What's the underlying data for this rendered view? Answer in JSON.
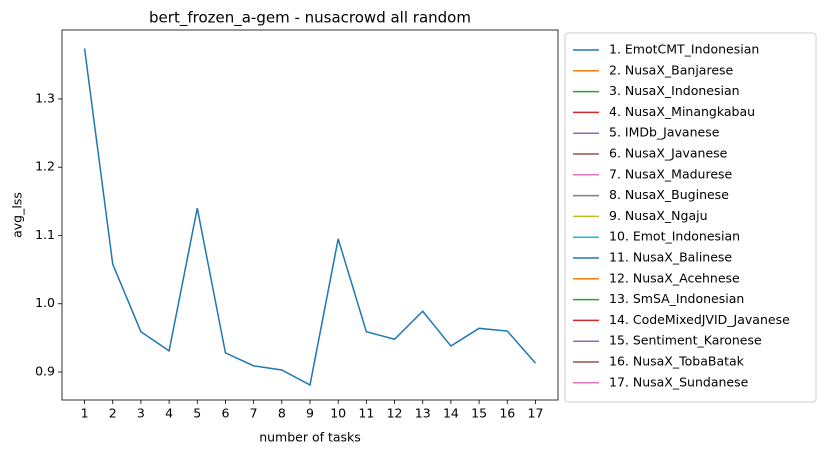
{
  "chart_data": {
    "type": "line",
    "title": "bert_frozen_a-gem - nusacrowd all random",
    "xlabel": "number of tasks",
    "ylabel": "avg_lss",
    "x": [
      1,
      2,
      3,
      4,
      5,
      6,
      7,
      8,
      9,
      10,
      11,
      12,
      13,
      14,
      15,
      16,
      17
    ],
    "xlim": [
      0.2,
      17.8
    ],
    "xticks": [
      1,
      2,
      3,
      4,
      5,
      6,
      7,
      8,
      9,
      10,
      11,
      12,
      13,
      14,
      15,
      16,
      17
    ],
    "ylim": [
      0.859,
      1.401
    ],
    "yticks": [
      {
        "value": 0.9,
        "label": "0.9"
      },
      {
        "value": 1.0,
        "label": "1.0"
      },
      {
        "value": 1.1,
        "label": "1.1"
      },
      {
        "value": 1.2,
        "label": "1.2"
      },
      {
        "value": 1.3,
        "label": "1.3"
      }
    ],
    "grid": false,
    "legend": "outside right",
    "series": [
      {
        "name": "1. EmotCMT_Indonesian",
        "color": "#1f77b4",
        "values": [
          1.374,
          1.058,
          0.959,
          0.931,
          1.14,
          0.928,
          0.909,
          0.903,
          0.881,
          1.095,
          0.959,
          0.948,
          0.989,
          0.938,
          0.964,
          0.96,
          0.913
        ]
      },
      {
        "name": "2. NusaX_Banjarese",
        "color": "#ff7f0e",
        "values": [
          null,
          null,
          null,
          null,
          null,
          null,
          null,
          null,
          null,
          null,
          null,
          null,
          null,
          null,
          null,
          null,
          null
        ]
      },
      {
        "name": "3. NusaX_Indonesian",
        "color": "#2ca02c",
        "values": [
          null,
          null,
          null,
          null,
          null,
          null,
          null,
          null,
          null,
          null,
          null,
          null,
          null,
          null,
          null,
          null,
          null
        ]
      },
      {
        "name": "4. NusaX_Minangkabau",
        "color": "#d62728",
        "values": [
          null,
          null,
          null,
          null,
          null,
          null,
          null,
          null,
          null,
          null,
          null,
          null,
          null,
          null,
          null,
          null,
          null
        ]
      },
      {
        "name": "5. IMDb_Javanese",
        "color": "#9467bd",
        "values": [
          null,
          null,
          null,
          null,
          null,
          null,
          null,
          null,
          null,
          null,
          null,
          null,
          null,
          null,
          null,
          null,
          null
        ]
      },
      {
        "name": "6. NusaX_Javanese",
        "color": "#8c564b",
        "values": [
          null,
          null,
          null,
          null,
          null,
          null,
          null,
          null,
          null,
          null,
          null,
          null,
          null,
          null,
          null,
          null,
          null
        ]
      },
      {
        "name": "7. NusaX_Madurese",
        "color": "#e377c2",
        "values": [
          null,
          null,
          null,
          null,
          null,
          null,
          null,
          null,
          null,
          null,
          null,
          null,
          null,
          null,
          null,
          null,
          null
        ]
      },
      {
        "name": "8. NusaX_Buginese",
        "color": "#7f7f7f",
        "values": [
          null,
          null,
          null,
          null,
          null,
          null,
          null,
          null,
          null,
          null,
          null,
          null,
          null,
          null,
          null,
          null,
          null
        ]
      },
      {
        "name": "9. NusaX_Ngaju",
        "color": "#bcbd22",
        "values": [
          null,
          null,
          null,
          null,
          null,
          null,
          null,
          null,
          null,
          null,
          null,
          null,
          null,
          null,
          null,
          null,
          null
        ]
      },
      {
        "name": "10. Emot_Indonesian",
        "color": "#17becf",
        "values": [
          null,
          null,
          null,
          null,
          null,
          null,
          null,
          null,
          null,
          null,
          null,
          null,
          null,
          null,
          null,
          null,
          null
        ]
      },
      {
        "name": "11. NusaX_Balinese",
        "color": "#1f77b4",
        "values": [
          null,
          null,
          null,
          null,
          null,
          null,
          null,
          null,
          null,
          null,
          null,
          null,
          null,
          null,
          null,
          null,
          null
        ]
      },
      {
        "name": "12. NusaX_Acehnese",
        "color": "#ff7f0e",
        "values": [
          null,
          null,
          null,
          null,
          null,
          null,
          null,
          null,
          null,
          null,
          null,
          null,
          null,
          null,
          null,
          null,
          null
        ]
      },
      {
        "name": "13. SmSA_Indonesian",
        "color": "#2ca02c",
        "values": [
          null,
          null,
          null,
          null,
          null,
          null,
          null,
          null,
          null,
          null,
          null,
          null,
          null,
          null,
          null,
          null,
          null
        ]
      },
      {
        "name": "14. CodeMixedJVID_Javanese",
        "color": "#d62728",
        "values": [
          null,
          null,
          null,
          null,
          null,
          null,
          null,
          null,
          null,
          null,
          null,
          null,
          null,
          null,
          null,
          null,
          null
        ]
      },
      {
        "name": "15. Sentiment_Karonese",
        "color": "#9467bd",
        "values": [
          null,
          null,
          null,
          null,
          null,
          null,
          null,
          null,
          null,
          null,
          null,
          null,
          null,
          null,
          null,
          null,
          null
        ]
      },
      {
        "name": "16. NusaX_TobaBatak",
        "color": "#8c564b",
        "values": [
          null,
          null,
          null,
          null,
          null,
          null,
          null,
          null,
          null,
          null,
          null,
          null,
          null,
          null,
          null,
          null,
          null
        ]
      },
      {
        "name": "17. NusaX_Sundanese",
        "color": "#e377c2",
        "values": [
          null,
          null,
          null,
          null,
          null,
          null,
          null,
          null,
          null,
          null,
          null,
          null,
          null,
          null,
          null,
          null,
          null
        ]
      }
    ]
  }
}
